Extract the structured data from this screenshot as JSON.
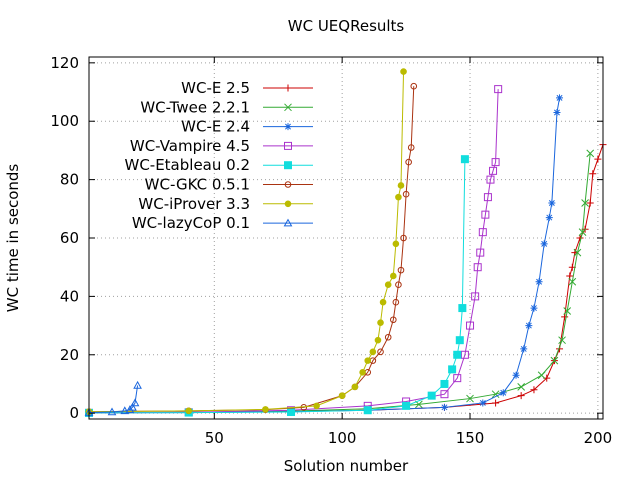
{
  "chart_data": {
    "type": "line",
    "title": "WC UEQResults",
    "xlabel": "Solution number",
    "ylabel": "WC time in seconds",
    "xlim": [
      1,
      202
    ],
    "ylim": [
      -2,
      122
    ],
    "xticks": [
      50,
      100,
      150,
      200
    ],
    "yticks": [
      0,
      20,
      40,
      60,
      80,
      100,
      120
    ],
    "grid": true,
    "legend_position": "top-left",
    "series": [
      {
        "name": "WC-E 2.5",
        "color": "#cc0000",
        "marker": "plus",
        "points": [
          [
            1,
            0.1
          ],
          [
            40,
            0.3
          ],
          [
            80,
            0.6
          ],
          [
            110,
            1.0
          ],
          [
            140,
            2.0
          ],
          [
            160,
            3.5
          ],
          [
            170,
            6
          ],
          [
            175,
            8
          ],
          [
            180,
            12
          ],
          [
            183,
            18
          ],
          [
            185,
            22
          ],
          [
            187,
            33
          ],
          [
            189,
            47
          ],
          [
            190,
            50
          ],
          [
            191,
            55
          ],
          [
            193,
            60
          ],
          [
            195,
            63
          ],
          [
            197,
            72
          ],
          [
            198,
            82
          ],
          [
            200,
            87
          ],
          [
            202,
            92
          ]
        ]
      },
      {
        "name": "WC-Twee 2.2.1",
        "color": "#33aa33",
        "marker": "x",
        "points": [
          [
            1,
            0.1
          ],
          [
            40,
            0.3
          ],
          [
            80,
            0.7
          ],
          [
            110,
            1.5
          ],
          [
            130,
            3
          ],
          [
            150,
            5
          ],
          [
            160,
            6.5
          ],
          [
            170,
            9
          ],
          [
            178,
            13
          ],
          [
            183,
            18
          ],
          [
            186,
            25
          ],
          [
            188,
            35
          ],
          [
            190,
            45
          ],
          [
            192,
            55
          ],
          [
            194,
            62
          ],
          [
            195,
            72
          ],
          [
            197,
            89
          ]
        ]
      },
      {
        "name": "WC-E 2.4",
        "color": "#1a66dd",
        "marker": "star",
        "points": [
          [
            1,
            0.1
          ],
          [
            40,
            0.2
          ],
          [
            80,
            0.5
          ],
          [
            110,
            1.0
          ],
          [
            140,
            2.0
          ],
          [
            155,
            3.5
          ],
          [
            163,
            7
          ],
          [
            168,
            13
          ],
          [
            171,
            22
          ],
          [
            173,
            30
          ],
          [
            175,
            36
          ],
          [
            177,
            45
          ],
          [
            179,
            58
          ],
          [
            181,
            67
          ],
          [
            182,
            72
          ],
          [
            184,
            103
          ],
          [
            185,
            108
          ]
        ]
      },
      {
        "name": "WC-Vampire 4.5",
        "color": "#aa33cc",
        "marker": "square-open",
        "points": [
          [
            1,
            0.1
          ],
          [
            40,
            0.3
          ],
          [
            80,
            1.0
          ],
          [
            110,
            2.5
          ],
          [
            125,
            4
          ],
          [
            140,
            6.5
          ],
          [
            145,
            12
          ],
          [
            148,
            20
          ],
          [
            150,
            30
          ],
          [
            152,
            40
          ],
          [
            153,
            50
          ],
          [
            154,
            55
          ],
          [
            155,
            62
          ],
          [
            156,
            68
          ],
          [
            157,
            74
          ],
          [
            158,
            80
          ],
          [
            159,
            83
          ],
          [
            160,
            86
          ],
          [
            161,
            111
          ]
        ]
      },
      {
        "name": "WC-Etableau 0.2",
        "color": "#11dddd",
        "marker": "square-filled",
        "points": [
          [
            1,
            0.1
          ],
          [
            40,
            0.2
          ],
          [
            80,
            0.4
          ],
          [
            110,
            1.0
          ],
          [
            125,
            2.5
          ],
          [
            135,
            6
          ],
          [
            140,
            10
          ],
          [
            143,
            15
          ],
          [
            145,
            20
          ],
          [
            146,
            25
          ],
          [
            147,
            36
          ],
          [
            148,
            87
          ]
        ]
      },
      {
        "name": "WC-GKC 0.5.1",
        "color": "#aa3311",
        "marker": "circle-open",
        "points": [
          [
            1,
            0.5
          ],
          [
            40,
            0.8
          ],
          [
            70,
            1.2
          ],
          [
            85,
            2
          ],
          [
            100,
            6
          ],
          [
            105,
            9
          ],
          [
            110,
            14
          ],
          [
            112,
            18
          ],
          [
            115,
            21
          ],
          [
            118,
            26
          ],
          [
            120,
            32
          ],
          [
            121,
            38
          ],
          [
            122,
            44
          ],
          [
            123,
            49
          ],
          [
            124,
            60
          ],
          [
            125,
            75
          ],
          [
            126,
            86
          ],
          [
            127,
            91
          ],
          [
            128,
            112
          ]
        ]
      },
      {
        "name": "WC-iProver 3.3",
        "color": "#bbbb00",
        "marker": "circle-filled",
        "points": [
          [
            1,
            0.5
          ],
          [
            40,
            0.8
          ],
          [
            70,
            1.3
          ],
          [
            90,
            2.5
          ],
          [
            100,
            6
          ],
          [
            105,
            9
          ],
          [
            108,
            14
          ],
          [
            110,
            18
          ],
          [
            112,
            21
          ],
          [
            114,
            25
          ],
          [
            115,
            31
          ],
          [
            116,
            38
          ],
          [
            118,
            44
          ],
          [
            120,
            47
          ],
          [
            121,
            58
          ],
          [
            122,
            74
          ],
          [
            123,
            78
          ],
          [
            124,
            117
          ]
        ]
      },
      {
        "name": "WC-lazyCoP 0.1",
        "color": "#1a66dd",
        "marker": "triangle-open",
        "points": [
          [
            1,
            0.2
          ],
          [
            10,
            0.4
          ],
          [
            15,
            0.8
          ],
          [
            17,
            1.2
          ],
          [
            18,
            2
          ],
          [
            19,
            3.5
          ],
          [
            20,
            9.5
          ]
        ]
      }
    ]
  }
}
